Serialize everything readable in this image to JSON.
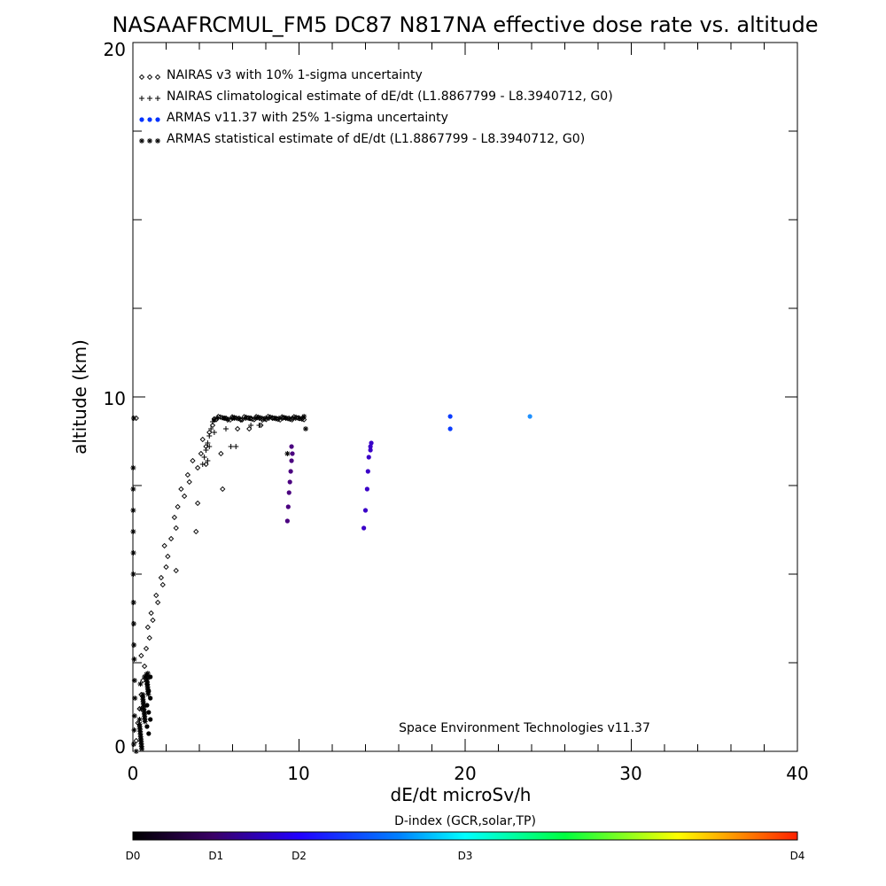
{
  "chart_data": {
    "type": "scatter",
    "title": "NASAAFRCMUL_FM5 DC87 N817NA effective dose rate vs. altitude",
    "xlabel": "dE/dt microSv/h",
    "ylabel": "altitude (km)",
    "xlim": [
      0,
      40
    ],
    "ylim": [
      0,
      20
    ],
    "x_ticks": [
      "0",
      "10",
      "20",
      "30",
      "40"
    ],
    "y_ticks": [
      "0",
      "10",
      "20"
    ],
    "grid": false,
    "legend_position": "top-left",
    "credit": "Space Environment Technologies v11.37",
    "colorbar": {
      "title": "D-index (GCR,solar,TP)",
      "labels": [
        {
          "text": "D0",
          "value": 0
        },
        {
          "text": "D1",
          "value": 1
        },
        {
          "text": "D2",
          "value": 2
        },
        {
          "text": "D3",
          "value": 3
        },
        {
          "text": "D4",
          "value": 4
        }
      ]
    },
    "series": [
      {
        "name": "NAIRAS v3 with 10% 1-sigma uncertainty",
        "marker": "diamond",
        "color": "#000000",
        "points": [
          [
            0.2,
            0.3
          ],
          [
            0.3,
            0.8
          ],
          [
            0.4,
            1.2
          ],
          [
            0.5,
            1.6
          ],
          [
            0.6,
            2.0
          ],
          [
            0.7,
            2.4
          ],
          [
            0.5,
            2.7
          ],
          [
            0.8,
            2.9
          ],
          [
            1.0,
            3.2
          ],
          [
            0.9,
            3.5
          ],
          [
            1.2,
            3.7
          ],
          [
            1.1,
            3.9
          ],
          [
            1.5,
            4.2
          ],
          [
            1.4,
            4.4
          ],
          [
            1.8,
            4.7
          ],
          [
            1.7,
            4.9
          ],
          [
            2.0,
            5.2
          ],
          [
            2.1,
            5.5
          ],
          [
            1.9,
            5.8
          ],
          [
            2.3,
            6.0
          ],
          [
            2.6,
            6.3
          ],
          [
            2.5,
            6.6
          ],
          [
            2.7,
            6.9
          ],
          [
            3.1,
            7.2
          ],
          [
            2.9,
            7.4
          ],
          [
            3.4,
            7.6
          ],
          [
            3.3,
            7.8
          ],
          [
            3.9,
            8.0
          ],
          [
            3.6,
            8.2
          ],
          [
            4.1,
            8.4
          ],
          [
            4.4,
            8.6
          ],
          [
            4.2,
            8.8
          ],
          [
            4.6,
            9.0
          ],
          [
            4.4,
            8.1
          ],
          [
            3.8,
            6.2
          ],
          [
            3.9,
            7.0
          ],
          [
            2.6,
            5.1
          ],
          [
            4.8,
            9.2
          ],
          [
            5.4,
            7.4
          ],
          [
            5.3,
            8.4
          ],
          [
            6.3,
            9.1
          ],
          [
            7.0,
            9.1
          ],
          [
            7.7,
            9.2
          ],
          [
            5.6,
            9.4
          ],
          [
            6.0,
            9.4
          ],
          [
            6.5,
            9.35
          ],
          [
            7.1,
            9.4
          ],
          [
            7.8,
            9.35
          ],
          [
            8.4,
            9.4
          ],
          [
            9.0,
            9.4
          ],
          [
            9.6,
            9.4
          ],
          [
            10.2,
            9.4
          ],
          [
            0.2,
            9.4
          ]
        ]
      },
      {
        "name": "NAIRAS climatological estimate of dE/dt (L1.8867799 - L8.3940712, G0)",
        "marker": "plus",
        "color": "#000000",
        "points": [
          [
            4.2,
            8.1
          ],
          [
            4.3,
            8.3
          ],
          [
            4.4,
            8.5
          ],
          [
            4.5,
            8.7
          ],
          [
            4.6,
            8.9
          ],
          [
            4.7,
            9.1
          ],
          [
            4.5,
            8.2
          ],
          [
            4.6,
            8.6
          ],
          [
            4.8,
            9.3
          ],
          [
            4.9,
            9.0
          ],
          [
            5.6,
            9.1
          ],
          [
            5.9,
            8.6
          ],
          [
            6.2,
            8.6
          ],
          [
            7.1,
            9.2
          ],
          [
            7.6,
            9.2
          ],
          [
            5.1,
            9.4
          ],
          [
            5.7,
            9.35
          ],
          [
            6.4,
            9.4
          ],
          [
            7.0,
            9.4
          ],
          [
            7.6,
            9.4
          ],
          [
            8.2,
            9.4
          ],
          [
            8.8,
            9.4
          ],
          [
            9.4,
            9.4
          ],
          [
            10.0,
            9.4
          ]
        ]
      },
      {
        "name": "ARMAS v11.37 with 25% 1-sigma uncertainty",
        "marker": "dot",
        "color": "#0033ff",
        "points": [
          [
            9.3,
            6.5
          ],
          [
            9.35,
            6.9
          ],
          [
            9.4,
            7.3
          ],
          [
            9.45,
            7.6
          ],
          [
            9.5,
            7.9
          ],
          [
            9.55,
            8.2
          ],
          [
            9.6,
            8.4
          ],
          [
            9.55,
            8.6
          ],
          [
            13.9,
            6.3
          ],
          [
            14.0,
            6.8
          ],
          [
            14.1,
            7.4
          ],
          [
            14.15,
            7.9
          ],
          [
            14.2,
            8.3
          ],
          [
            14.3,
            8.5
          ],
          [
            14.3,
            8.6
          ],
          [
            14.35,
            8.7
          ],
          [
            19.1,
            9.1
          ],
          [
            19.1,
            9.45
          ],
          [
            23.9,
            9.45
          ]
        ]
      },
      {
        "name": "ARMAS statistical estimate of dE/dt (L1.8867799 - L8.3940712, G0)",
        "marker": "asterisk",
        "color": "#000000",
        "points": [
          [
            0.05,
            0.2
          ],
          [
            0.08,
            0.6
          ],
          [
            0.1,
            1.0
          ],
          [
            0.12,
            1.5
          ],
          [
            0.1,
            2.0
          ],
          [
            0.08,
            2.6
          ],
          [
            0.06,
            3.0
          ],
          [
            0.05,
            3.6
          ],
          [
            0.04,
            4.2
          ],
          [
            0.03,
            5.0
          ],
          [
            0.03,
            5.6
          ],
          [
            0.02,
            6.2
          ],
          [
            0.02,
            6.8
          ],
          [
            0.02,
            7.4
          ],
          [
            0.02,
            8.0
          ],
          [
            0.5,
            1.2
          ],
          [
            0.6,
            1.6
          ],
          [
            0.7,
            2.1
          ],
          [
            0.45,
            1.9
          ],
          [
            0.4,
            0.9
          ],
          [
            0.8,
            2.1
          ],
          [
            0.9,
            2.2
          ],
          [
            9.3,
            8.4
          ],
          [
            10.4,
            9.1
          ],
          [
            4.9,
            9.35
          ],
          [
            5.5,
            9.4
          ],
          [
            6.1,
            9.4
          ],
          [
            6.8,
            9.4
          ],
          [
            7.4,
            9.4
          ],
          [
            8.0,
            9.4
          ],
          [
            8.6,
            9.4
          ],
          [
            9.2,
            9.4
          ],
          [
            9.8,
            9.4
          ],
          [
            10.3,
            9.45
          ],
          [
            0.05,
            9.4
          ]
        ]
      }
    ],
    "point_colors": {
      "diamond": "#000000",
      "plus": "#000000",
      "asterisk": "#000000",
      "dot_low": "#4b0080",
      "dot_mid": "#3a00c8",
      "dot_high": "#0a3cff",
      "dot_top": "#1e90ff"
    }
  }
}
